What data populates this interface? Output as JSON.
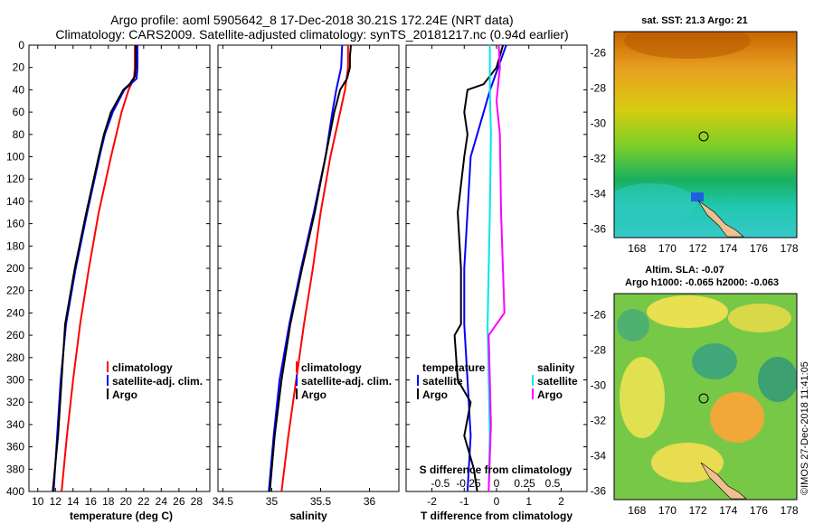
{
  "header": {
    "line1": "Argo profile: aoml 5905642_8 17-Dec-2018 30.21S 172.24E (NRT data)",
    "line2": "Climatology: CARS2009. Satellite-adjusted climatology: synTS_20181217.nc (0.94d earlier)"
  },
  "colors": {
    "climatology": "#ff0000",
    "satellite": "#0000ff",
    "argo": "#000000",
    "sat_salinity": "#00e5ee",
    "clim_salinity": "#ff00ff"
  },
  "credit": "©IMOS 27-Dec-2018 11:41:05",
  "chart_data": [
    {
      "type": "line",
      "id": "temperature",
      "xlabel": "temperature (deg C)",
      "ylabel": "",
      "xlim": [
        9,
        29.5
      ],
      "ylim": [
        400,
        0
      ],
      "xticks": [
        "10",
        "12",
        "14",
        "16",
        "18",
        "20",
        "22",
        "24",
        "26",
        "28"
      ],
      "yticks": [
        "0",
        "20",
        "40",
        "60",
        "80",
        "100",
        "120",
        "140",
        "160",
        "180",
        "200",
        "220",
        "240",
        "260",
        "280",
        "300",
        "320",
        "340",
        "360",
        "380",
        "400"
      ],
      "legend": [
        "climatology",
        "satellite-adj. clim.",
        "Argo"
      ],
      "series": [
        {
          "name": "climatology",
          "color": "#ff0000",
          "depth": [
            0,
            20,
            30,
            40,
            60,
            80,
            100,
            150,
            200,
            250,
            300,
            350,
            400
          ],
          "values": [
            21.0,
            21.0,
            20.9,
            20.3,
            19.5,
            18.9,
            18.3,
            16.9,
            15.8,
            14.8,
            14.0,
            13.3,
            12.7
          ]
        },
        {
          "name": "satellite-adj. clim.",
          "color": "#0000ff",
          "depth": [
            0,
            20,
            30,
            35,
            40,
            60,
            80,
            100,
            150,
            200,
            250,
            300,
            350,
            400
          ],
          "values": [
            21.3,
            21.3,
            21.2,
            20.5,
            19.8,
            18.5,
            17.6,
            17.0,
            15.6,
            14.3,
            13.2,
            12.6,
            12.2,
            11.8
          ]
        },
        {
          "name": "Argo",
          "color": "#000000",
          "depth": [
            0,
            20,
            28,
            35,
            40,
            60,
            80,
            100,
            150,
            200,
            250,
            300,
            350,
            400
          ],
          "values": [
            21.1,
            21.1,
            21.0,
            20.4,
            19.7,
            18.3,
            17.5,
            16.9,
            15.5,
            14.2,
            13.1,
            12.7,
            12.3,
            11.7
          ]
        }
      ]
    },
    {
      "type": "line",
      "id": "salinity",
      "xlabel": "salinity",
      "ylabel": "",
      "xlim": [
        34.45,
        36.3
      ],
      "ylim": [
        400,
        0
      ],
      "xticks": [
        "34.5",
        "35",
        "35.5",
        "36"
      ],
      "legend": [
        "climatology",
        "satellite-adj. clim.",
        "Argo"
      ],
      "series": [
        {
          "name": "climatology",
          "color": "#ff0000",
          "depth": [
            0,
            20,
            40,
            60,
            100,
            150,
            200,
            250,
            300,
            350,
            400
          ],
          "values": [
            35.78,
            35.78,
            35.75,
            35.7,
            35.6,
            35.5,
            35.42,
            35.33,
            35.25,
            35.17,
            35.1
          ]
        },
        {
          "name": "satellite-adj. clim.",
          "color": "#0000ff",
          "depth": [
            0,
            20,
            40,
            60,
            100,
            150,
            200,
            250,
            300,
            350,
            400
          ],
          "values": [
            35.72,
            35.71,
            35.66,
            35.62,
            35.55,
            35.43,
            35.3,
            35.18,
            35.08,
            35.02,
            34.97
          ]
        },
        {
          "name": "Argo",
          "color": "#000000",
          "depth": [
            0,
            10,
            20,
            30,
            40,
            60,
            100,
            150,
            200,
            250,
            300,
            350,
            400
          ],
          "values": [
            35.81,
            35.8,
            35.8,
            35.77,
            35.7,
            35.64,
            35.55,
            35.44,
            35.31,
            35.19,
            35.1,
            35.03,
            34.98
          ]
        }
      ]
    },
    {
      "type": "line",
      "id": "difference",
      "xlabel": "T difference from climatology",
      "xlabel_top": "S difference from climatology",
      "ylabel": "",
      "xlim": [
        -2.8,
        2.8
      ],
      "ylim": [
        400,
        0
      ],
      "xticks": [
        "-2",
        "-1",
        "0",
        "1",
        "2"
      ],
      "xticks_top": [
        "-0.5",
        "-0.25",
        "0",
        "0.25",
        "0.5"
      ],
      "legend_temperature": {
        "title": "temperature",
        "items": [
          "satellite",
          "Argo"
        ]
      },
      "legend_salinity": {
        "title": "salinity",
        "items": [
          "satellite",
          "Argo"
        ]
      },
      "series": [
        {
          "name": "temperature satellite",
          "color": "#0000ff",
          "depth": [
            0,
            40,
            80,
            100,
            150,
            200,
            250,
            300,
            350,
            400
          ],
          "values": [
            0.3,
            -0.2,
            -0.6,
            -0.8,
            -0.9,
            -1.0,
            -1.0,
            -0.9,
            -0.8,
            -0.9
          ]
        },
        {
          "name": "temperature Argo",
          "color": "#000000",
          "depth": [
            0,
            20,
            35,
            40,
            60,
            80,
            100,
            150,
            200,
            250,
            260,
            300,
            320,
            350,
            380,
            400
          ],
          "values": [
            0.2,
            0.0,
            -0.4,
            -0.9,
            -1.0,
            -0.9,
            -1.0,
            -1.2,
            -1.1,
            -1.1,
            -1.3,
            -1.2,
            -0.8,
            -1.0,
            -0.7,
            -0.6
          ]
        },
        {
          "name": "salinity satellite",
          "color": "#00e5ee",
          "depth": [
            0,
            40,
            80,
            150,
            250,
            300,
            350,
            400
          ],
          "values": [
            -0.06,
            -0.06,
            -0.05,
            -0.06,
            -0.08,
            -0.07,
            -0.06,
            -0.07
          ]
        },
        {
          "name": "salinity Argo",
          "color": "#ff00ff",
          "depth": [
            0,
            20,
            50,
            80,
            150,
            240,
            260,
            300,
            340,
            400
          ],
          "values": [
            0.02,
            0.03,
            0.0,
            0.03,
            0.04,
            0.07,
            -0.07,
            -0.06,
            -0.05,
            -0.07
          ]
        }
      ]
    },
    {
      "type": "heatmap",
      "id": "sst-map",
      "title": "sat. SST: 21.3 Argo: 21",
      "xticks": [
        "168",
        "170",
        "172",
        "174",
        "176",
        "178"
      ],
      "yticks": [
        "-26",
        "-28",
        "-30",
        "-32",
        "-34",
        "-36"
      ],
      "xlim": [
        166.5,
        178.5
      ],
      "ylim": [
        -36.5,
        -24.8
      ],
      "marker": {
        "lon": 172.24,
        "lat": -30.21
      }
    },
    {
      "type": "heatmap",
      "id": "sla-map",
      "title": "Altim. SLA: -0.07",
      "subtitle": "Argo h1000: -0.065 h2000: -0.063",
      "xticks": [
        "168",
        "170",
        "172",
        "174",
        "176",
        "178"
      ],
      "yticks": [
        "-26",
        "-28",
        "-30",
        "-32",
        "-34",
        "-36"
      ],
      "xlim": [
        166.5,
        178.5
      ],
      "ylim": [
        -36.5,
        -24.8
      ],
      "marker": {
        "lon": 172.24,
        "lat": -30.21
      }
    }
  ]
}
